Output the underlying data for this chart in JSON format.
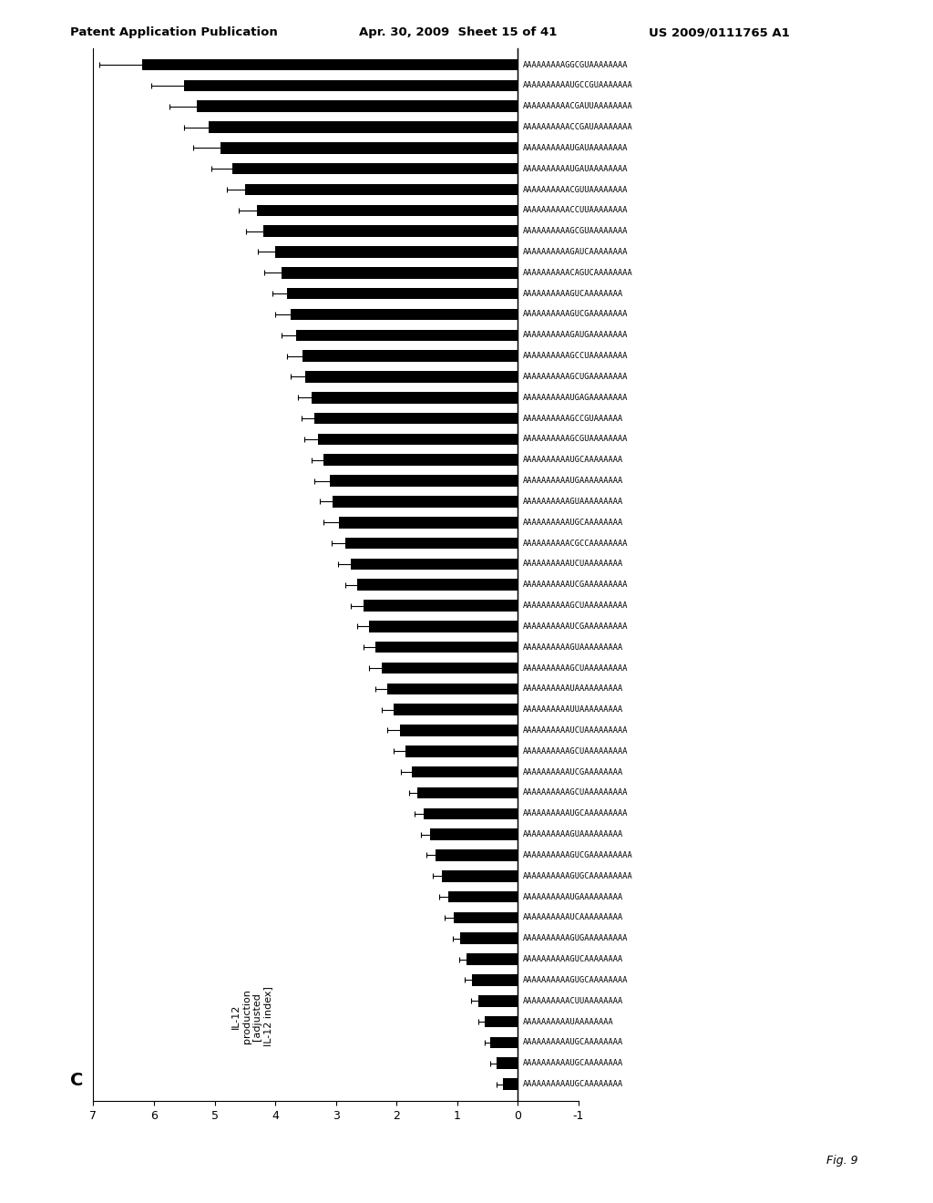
{
  "title_header": "Patent Application Publication",
  "title_date": "Apr. 30, 2009",
  "title_sheet": "Sheet 15 of 41",
  "title_patent": "US 2009/0111765 A1",
  "panel_label": "C",
  "fig_label": "Fig. 9",
  "xlabel": "IL-12\nproduction\n[adjusted\nIL-12 index]",
  "xlim": [
    -1,
    7
  ],
  "xticks": [
    7,
    6,
    5,
    4,
    3,
    2,
    1,
    0,
    -1
  ],
  "xtick_labels": [
    "7",
    "6",
    "5",
    "4",
    "3",
    "2",
    "1",
    "0",
    "-1"
  ],
  "sequences": [
    "AAAAAAAAAGGCGUAAAAAAAA",
    "AAAAAAAAAAUGCCGUAAAAAAA",
    "AAAAAAAAAACGAUUAAAAAAAA",
    "AAAAAAAAAACCGAUAAAAAAAA",
    "AAAAAAAAAAUGAUAAAAAAAA",
    "AAAAAAAAAAUGAUAAAAAAAA",
    "AAAAAAAAAACGUUAAAAAAAA",
    "AAAAAAAAAACCUUAAAAAAAA",
    "AAAAAAAAAAGCGUAAAAAAAA",
    "AAAAAAAAAAGAUCAAAAAAAA",
    "AAAAAAAAAACAGUCAAAAAAAA",
    "AAAAAAAAAAGUCAAAAAAAA",
    "AAAAAAAAAAGUCGAAAAAAAA",
    "AAAAAAAAAAGAUGAAAAAAAA",
    "AAAAAAAAAAGCCUAAAAAAAA",
    "AAAAAAAAAAGCUGAAAAAAAA",
    "AAAAAAAAAAUGAGAAAAAAAA",
    "AAAAAAAAAAGCCGUAAAAAA",
    "AAAAAAAAAAGCGUAAAAAAAA",
    "AAAAAAAAAAUGCAAAAAAAA",
    "AAAAAAAAAAUGAAAAAAAAA",
    "AAAAAAAAAAGUAAAAAAAAA",
    "AAAAAAAAAAUGCAAAAAAAA",
    "AAAAAAAAAACGCCAAAAAAAA",
    "AAAAAAAAAAUCUAAAAAAAA",
    "AAAAAAAAAAUCGAAAAAAAAA",
    "AAAAAAAAAAGCUAAAAAAAAA",
    "AAAAAAAAAAUCGAAAAAAAAA",
    "AAAAAAAAAAGUAAAAAAAAA",
    "AAAAAAAAAAGCUAAAAAAAAA",
    "AAAAAAAAAAUAAAAAAAAAA",
    "AAAAAAAAAAUUAAAAAAAAA",
    "AAAAAAAAAAUCUAAAAAAAAA",
    "AAAAAAAAAAGCUAAAAAAAAA",
    "AAAAAAAAAAUCGAAAAAAAA",
    "AAAAAAAAAAGCUAAAAAAAAA",
    "AAAAAAAAAAUGCAAAAAAAAA",
    "AAAAAAAAAAGUAAAAAAAAA",
    "AAAAAAAAAAGUCGAAAAAAAAA",
    "AAAAAAAAAAGUGCAAAAAAAAA",
    "AAAAAAAAAAUGAAAAAAAAA",
    "AAAAAAAAAAUCAAAAAAAAA",
    "AAAAAAAAAAGUGAAAAAAAAA",
    "AAAAAAAAAAGUCAAAAAAAA",
    "AAAAAAAAAAGUGCAAAAAAAA",
    "AAAAAAAAAACUUAAAAAAAA",
    "AAAAAAAAAAUAAAAAAAA",
    "AAAAAAAAAAUGCAAAAAAAA",
    "AAAAAAAAAAUGCAAAAAAAA",
    "AAAAAAAAAAUGCAAAAAAAA"
  ],
  "values": [
    6.2,
    5.5,
    5.3,
    5.1,
    4.9,
    4.7,
    4.5,
    4.3,
    4.2,
    4.0,
    3.9,
    3.8,
    3.75,
    3.65,
    3.55,
    3.5,
    3.4,
    3.35,
    3.3,
    3.2,
    3.1,
    3.05,
    2.95,
    2.85,
    2.75,
    2.65,
    2.55,
    2.45,
    2.35,
    2.25,
    2.15,
    2.05,
    1.95,
    1.85,
    1.75,
    1.65,
    1.55,
    1.45,
    1.35,
    1.25,
    1.15,
    1.05,
    0.95,
    0.85,
    0.75,
    0.65,
    0.55,
    0.45,
    0.35,
    0.25
  ],
  "errors": [
    0.7,
    0.55,
    0.45,
    0.4,
    0.45,
    0.35,
    0.3,
    0.3,
    0.28,
    0.28,
    0.28,
    0.25,
    0.25,
    0.25,
    0.25,
    0.25,
    0.22,
    0.22,
    0.22,
    0.2,
    0.25,
    0.22,
    0.25,
    0.22,
    0.22,
    0.2,
    0.2,
    0.2,
    0.2,
    0.2,
    0.2,
    0.2,
    0.2,
    0.2,
    0.18,
    0.15,
    0.15,
    0.15,
    0.15,
    0.15,
    0.15,
    0.15,
    0.12,
    0.12,
    0.12,
    0.12,
    0.1,
    0.1,
    0.1,
    0.1
  ],
  "bar_color": "#000000",
  "bar_height": 0.55
}
